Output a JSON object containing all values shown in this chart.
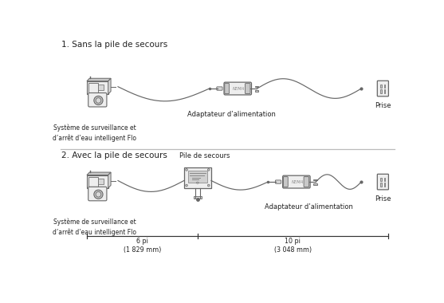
{
  "bg_color": "#ffffff",
  "line_color": "#666666",
  "title1": "1. Sans la pile de secours",
  "title2": "2. Avec la pile de secours",
  "label_flo": "Système de surveillance et\nd’arrêt d’eau intelligent Flo",
  "label_adapter1": "Adaptateur d’alimentation",
  "label_adapter2": "Adaptateur d’alimentation",
  "label_battery": "Pile de secours",
  "label_outlet1": "Prise",
  "label_outlet2": "Prise",
  "label_6pi": "6 pi\n(1 829 mm)",
  "label_10pi": "10 pi\n(3 048 mm)",
  "font_color": "#222222",
  "dim_line_color": "#333333",
  "divider_color": "#bbbbbb",
  "gray_fill": "#d8d8d8",
  "light_fill": "#eeeeee",
  "mid_fill": "#c8c8c8"
}
